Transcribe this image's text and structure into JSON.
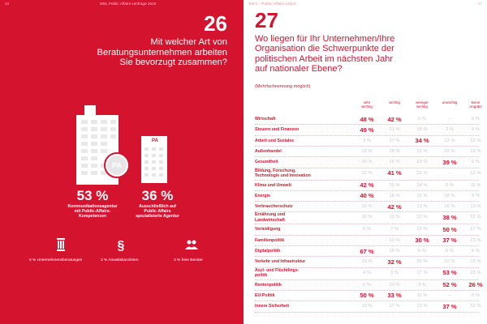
{
  "header": {
    "left_page_number": "20",
    "left_title": "MSL Public Affairs-Umfrage 2019",
    "right_title": "Teil 2 – Public-Affairs-Arbeit",
    "right_page_number": "21"
  },
  "left": {
    "question_number": "26",
    "question_text_lines": [
      "Mit welcher Art von",
      "Beratungsunternehmen arbeiten",
      "Sie bevorzugt zusammen?"
    ],
    "badge_label": "PA",
    "stats": [
      {
        "percent": "53 %",
        "label_lines": [
          "Kommunikationsagentur",
          "mit Public-Affairs-",
          "Kompetenzen"
        ]
      },
      {
        "percent": "36 %",
        "label_lines": [
          "Ausschließlich auf",
          "Public Affairs",
          "spezialisierte Agentur"
        ]
      }
    ],
    "small_items": [
      {
        "icon": "columns-icon",
        "label": "5 %  Unternehmensberatungen"
      },
      {
        "icon": "paragraph-icon",
        "label": "3 %  Anwaltskanzleien"
      },
      {
        "icon": "people-icon",
        "label": "3 %  freie Berater"
      }
    ]
  },
  "right": {
    "question_number": "27",
    "question_text_lines": [
      "Wo liegen für Ihr Unternehmen/Ihre",
      "Organisation die Schwerpunkte der",
      "politischen Arbeit im nächsten Jahr",
      "auf nationaler Ebene?"
    ],
    "note": "(Mehrfachnennung möglich)",
    "columns": [
      "sehr wichtig",
      "wichtig",
      "weniger wichtig",
      "unwichtig",
      "keine Angabe"
    ],
    "column_lines": [
      [
        "sehr",
        "wichtig"
      ],
      [
        "wichtig"
      ],
      [
        "weniger",
        "wichtig"
      ],
      [
        "unwichtig"
      ],
      [
        "keine",
        "Angabe"
      ]
    ],
    "rows": [
      {
        "label": [
          "Wirtschaft"
        ],
        "values": [
          "48 %",
          "42 %",
          "5 %",
          "–",
          "5 %"
        ],
        "highlight": [
          true,
          true,
          false,
          false,
          false
        ]
      },
      {
        "label": [
          "Steuern und Finanzen"
        ],
        "values": [
          "49 %",
          "21 %",
          "18 %",
          "3 %",
          "9 %"
        ],
        "highlight": [
          true,
          false,
          false,
          false,
          false
        ]
      },
      {
        "label": [
          "Arbeit und Soziales"
        ],
        "values": [
          "3 %",
          "27 %",
          "34 %",
          "13 %",
          "23 %"
        ],
        "highlight": [
          false,
          false,
          true,
          false,
          false
        ]
      },
      {
        "label": [
          "Außenhandel"
        ],
        "values": [
          "19 %",
          "28 %",
          "12 %",
          "22 %",
          "19 %"
        ],
        "highlight": [
          false,
          false,
          false,
          false,
          false
        ]
      },
      {
        "label": [
          "Gesundheit"
        ],
        "values": [
          "16 %",
          "16 %",
          "23 %",
          "39 %",
          "6 %"
        ],
        "highlight": [
          false,
          false,
          false,
          true,
          false
        ]
      },
      {
        "label": [
          "Bildung, Forschung,",
          "Technologie und Innovation"
        ],
        "values": [
          "22 %",
          "41 %",
          "25 %",
          "–",
          "12 %"
        ],
        "highlight": [
          false,
          true,
          false,
          false,
          false
        ]
      },
      {
        "label": [
          "Klima und Umwelt"
        ],
        "values": [
          "42 %",
          "25 %",
          "14 %",
          "6 %",
          "11 %"
        ],
        "highlight": [
          true,
          false,
          false,
          false,
          false
        ]
      },
      {
        "label": [
          "Energie"
        ],
        "values": [
          "40 %",
          "18 %",
          "15 %",
          "18 %",
          "9 %"
        ],
        "highlight": [
          true,
          false,
          false,
          false,
          false
        ]
      },
      {
        "label": [
          "Verbraucherschutz"
        ],
        "values": [
          "16 %",
          "42 %",
          "13 %",
          "16 %",
          "13 %"
        ],
        "highlight": [
          false,
          true,
          false,
          false,
          false
        ]
      },
      {
        "label": [
          "Ernährung und",
          "Landwirtschaft"
        ],
        "values": [
          "16 %",
          "12 %",
          "12 %",
          "38 %",
          "22 %"
        ],
        "highlight": [
          false,
          false,
          false,
          true,
          false
        ]
      },
      {
        "label": [
          "Verteidigung"
        ],
        "values": [
          "6 %",
          "7 %",
          "10 %",
          "50 %",
          "27 %"
        ],
        "highlight": [
          false,
          false,
          false,
          true,
          false
        ]
      },
      {
        "label": [
          "Familienpolitik"
        ],
        "values": [
          "",
          "10 %",
          "30 %",
          "37 %",
          "23 %"
        ],
        "highlight": [
          false,
          false,
          true,
          true,
          false
        ]
      },
      {
        "label": [
          "Digitalpolitik"
        ],
        "values": [
          "67 %",
          "15 %",
          "6 %",
          "6 %",
          "6 %"
        ],
        "highlight": [
          true,
          false,
          false,
          false,
          false
        ]
      },
      {
        "label": [
          "Verkehr und Infrastruktur"
        ],
        "values": [
          "19 %",
          "32 %",
          "26 %",
          "10 %",
          "13 %"
        ],
        "highlight": [
          false,
          true,
          false,
          false,
          false
        ]
      },
      {
        "label": [
          "Asyl- und Flüchtlings-",
          "politik"
        ],
        "values": [
          "4 %",
          "3 %",
          "17 %",
          "53 %",
          "23 %"
        ],
        "highlight": [
          false,
          false,
          false,
          true,
          false
        ]
      },
      {
        "label": [
          "Rentenpolitik"
        ],
        "values": [
          "6 %",
          "13 %",
          "3 %",
          "52 %",
          "26 %"
        ],
        "highlight": [
          false,
          false,
          false,
          true,
          true
        ]
      },
      {
        "label": [
          "EU-Politik"
        ],
        "values": [
          "50 %",
          "33 %",
          "11 %",
          "–",
          "6 %"
        ],
        "highlight": [
          true,
          true,
          false,
          false,
          false
        ]
      },
      {
        "label": [
          "Innere Sicherheit"
        ],
        "values": [
          "10 %",
          "17 %",
          "13 %",
          "37 %",
          "23 %"
        ],
        "highlight": [
          false,
          false,
          false,
          true,
          false
        ]
      }
    ]
  },
  "colors": {
    "brand_red": "#d4142f",
    "muted_gray": "#c7c7c7",
    "white": "#ffffff"
  }
}
